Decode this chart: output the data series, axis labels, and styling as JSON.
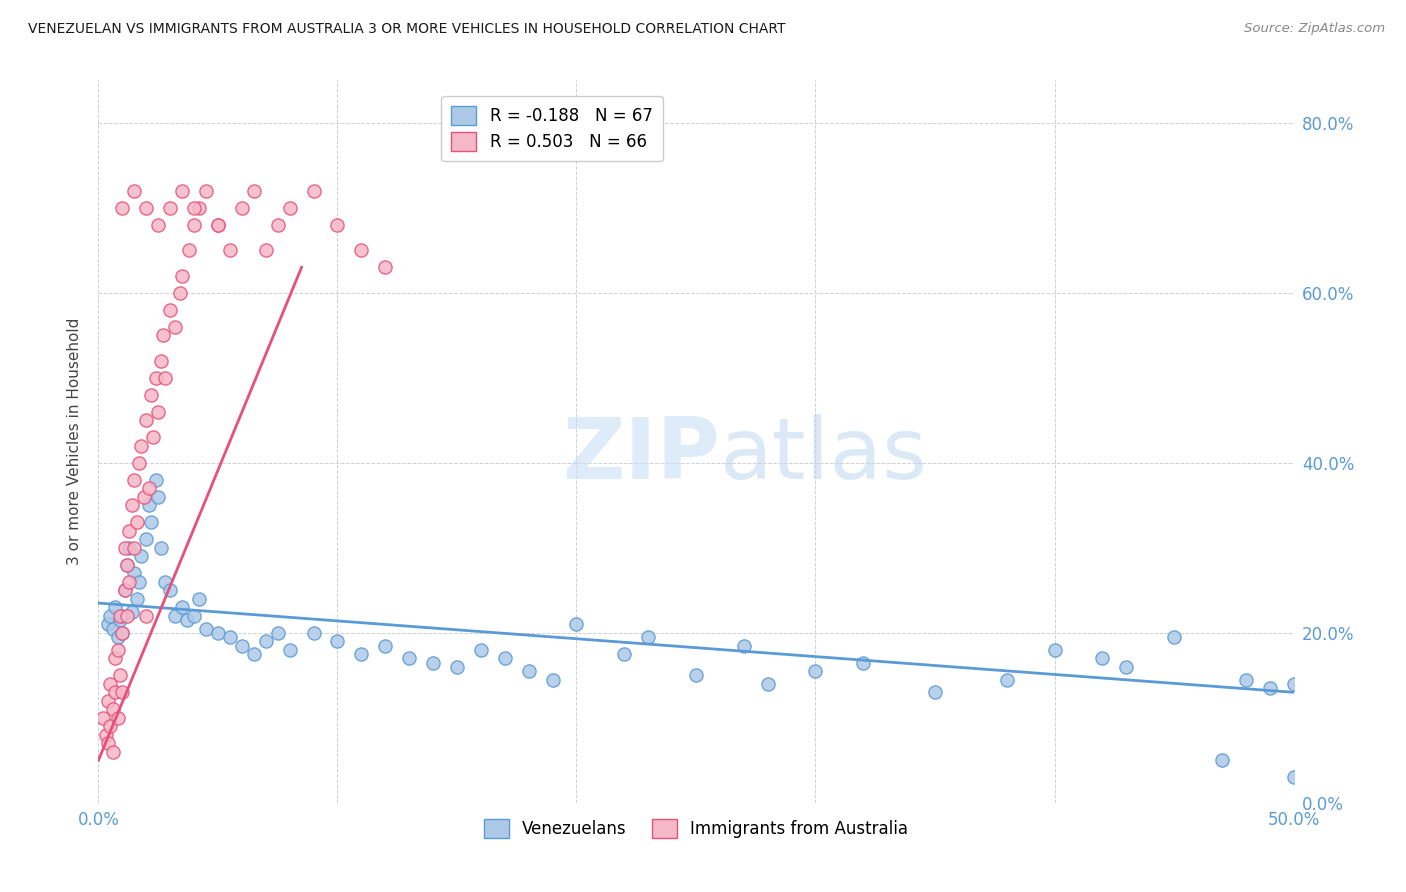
{
  "title": "VENEZUELAN VS IMMIGRANTS FROM AUSTRALIA 3 OR MORE VEHICLES IN HOUSEHOLD CORRELATION CHART",
  "source": "Source: ZipAtlas.com",
  "ylabel": "3 or more Vehicles in Household",
  "xlim": [
    0.0,
    50.0
  ],
  "ylim": [
    0.0,
    85.0
  ],
  "yticks": [
    0.0,
    20.0,
    40.0,
    60.0,
    80.0
  ],
  "xticks": [
    0.0,
    10.0,
    20.0,
    30.0,
    40.0,
    50.0
  ],
  "blue_R": -0.188,
  "blue_N": 67,
  "pink_R": 0.503,
  "pink_N": 66,
  "blue_color": "#adc9e8",
  "pink_color": "#f5b8c8",
  "blue_line_color": "#5b9bd5",
  "pink_line_color": "#e8507a",
  "legend_blue_label": "Venezuelans",
  "legend_pink_label": "Immigrants from Australia",
  "blue_line_x": [
    0.0,
    50.0
  ],
  "blue_line_y": [
    23.5,
    13.0
  ],
  "pink_line_x": [
    0.0,
    8.5
  ],
  "pink_line_y": [
    5.0,
    63.0
  ],
  "blue_scatter_x": [
    0.4,
    0.5,
    0.6,
    0.7,
    0.8,
    0.9,
    1.0,
    1.0,
    1.1,
    1.2,
    1.3,
    1.4,
    1.5,
    1.6,
    1.7,
    1.8,
    2.0,
    2.1,
    2.2,
    2.4,
    2.5,
    2.6,
    2.8,
    3.0,
    3.2,
    3.5,
    3.7,
    4.0,
    4.2,
    4.5,
    5.0,
    5.5,
    6.0,
    6.5,
    7.0,
    7.5,
    8.0,
    9.0,
    10.0,
    11.0,
    12.0,
    13.0,
    14.0,
    15.0,
    16.0,
    17.0,
    18.0,
    19.0,
    20.0,
    22.0,
    23.0,
    25.0,
    27.0,
    28.0,
    30.0,
    32.0,
    35.0,
    38.0,
    40.0,
    42.0,
    43.0,
    45.0,
    47.0,
    48.0,
    49.0,
    50.0,
    50.0
  ],
  "blue_scatter_y": [
    21.0,
    22.0,
    20.5,
    23.0,
    19.5,
    21.5,
    22.0,
    20.0,
    25.0,
    28.0,
    30.0,
    22.5,
    27.0,
    24.0,
    26.0,
    29.0,
    31.0,
    35.0,
    33.0,
    38.0,
    36.0,
    30.0,
    26.0,
    25.0,
    22.0,
    23.0,
    21.5,
    22.0,
    24.0,
    20.5,
    20.0,
    19.5,
    18.5,
    17.5,
    19.0,
    20.0,
    18.0,
    20.0,
    19.0,
    17.5,
    18.5,
    17.0,
    16.5,
    16.0,
    18.0,
    17.0,
    15.5,
    14.5,
    21.0,
    17.5,
    19.5,
    15.0,
    18.5,
    14.0,
    15.5,
    16.5,
    13.0,
    14.5,
    18.0,
    17.0,
    16.0,
    19.5,
    5.0,
    14.5,
    13.5,
    14.0,
    3.0
  ],
  "pink_scatter_x": [
    0.2,
    0.3,
    0.4,
    0.4,
    0.5,
    0.5,
    0.6,
    0.6,
    0.7,
    0.7,
    0.8,
    0.8,
    0.9,
    0.9,
    1.0,
    1.0,
    1.1,
    1.1,
    1.2,
    1.2,
    1.3,
    1.3,
    1.4,
    1.5,
    1.5,
    1.6,
    1.7,
    1.8,
    1.9,
    2.0,
    2.0,
    2.1,
    2.2,
    2.3,
    2.4,
    2.5,
    2.6,
    2.7,
    2.8,
    3.0,
    3.2,
    3.4,
    3.5,
    3.8,
    4.0,
    4.2,
    4.5,
    5.0,
    5.5,
    6.0,
    6.5,
    7.0,
    7.5,
    8.0,
    9.0,
    10.0,
    11.0,
    12.0,
    1.0,
    1.5,
    2.0,
    2.5,
    3.0,
    3.5,
    4.0,
    5.0
  ],
  "pink_scatter_y": [
    10.0,
    8.0,
    12.0,
    7.0,
    9.0,
    14.0,
    11.0,
    6.0,
    13.0,
    17.0,
    10.0,
    18.0,
    15.0,
    22.0,
    20.0,
    13.0,
    25.0,
    30.0,
    28.0,
    22.0,
    26.0,
    32.0,
    35.0,
    30.0,
    38.0,
    33.0,
    40.0,
    42.0,
    36.0,
    45.0,
    22.0,
    37.0,
    48.0,
    43.0,
    50.0,
    46.0,
    52.0,
    55.0,
    50.0,
    58.0,
    56.0,
    60.0,
    62.0,
    65.0,
    68.0,
    70.0,
    72.0,
    68.0,
    65.0,
    70.0,
    72.0,
    65.0,
    68.0,
    70.0,
    72.0,
    68.0,
    65.0,
    63.0,
    70.0,
    72.0,
    70.0,
    68.0,
    70.0,
    72.0,
    70.0,
    68.0
  ],
  "watermark_zip": "ZIP",
  "watermark_atlas": "atlas",
  "background_color": "#ffffff",
  "grid_color": "#d0d0d0",
  "watermark_color": "#ddeeff"
}
